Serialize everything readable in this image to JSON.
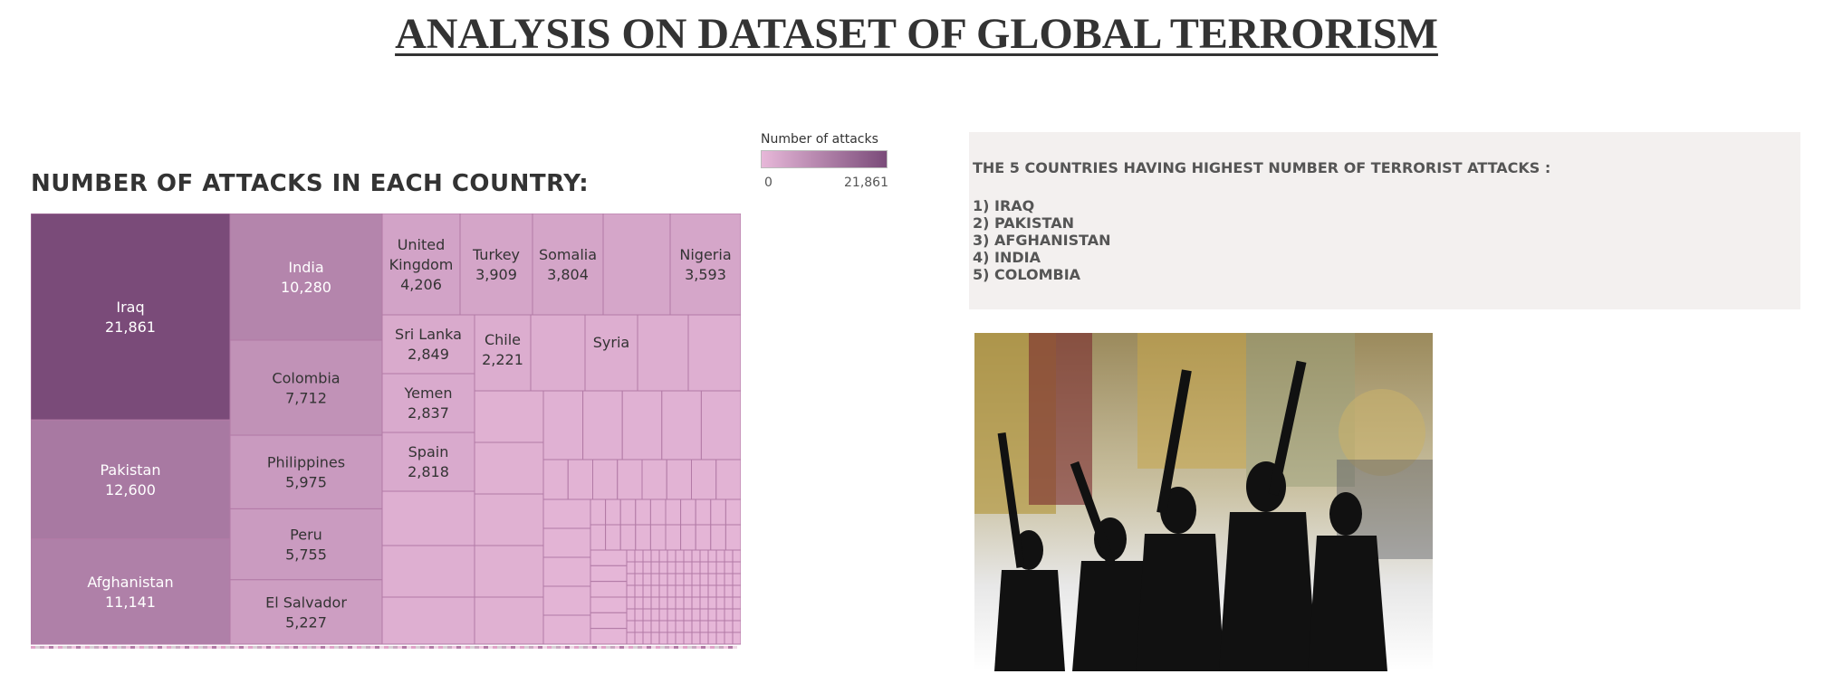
{
  "header": {
    "title": "ANALYSIS ON DATASET OF GLOBAL TERRORISM"
  },
  "legend": {
    "title": "Number of attacks",
    "min": "0",
    "max": "21,861",
    "color_low": "#e7b8d9",
    "color_high": "#7a4b79"
  },
  "chart_data": {
    "type": "treemap",
    "title": "NUMBER OF ATTACKS IN EACH COUNTRY:",
    "color_scale": {
      "min": 0,
      "max": 21861,
      "low": "#e7b8d9",
      "high": "#7a4b79"
    },
    "labeled": [
      {
        "name": "Iraq",
        "value": 21861,
        "display": "21,861"
      },
      {
        "name": "Pakistan",
        "value": 12600,
        "display": "12,600"
      },
      {
        "name": "Afghanistan",
        "value": 11141,
        "display": "11,141"
      },
      {
        "name": "India",
        "value": 10280,
        "display": "10,280"
      },
      {
        "name": "Colombia",
        "value": 7712,
        "display": "7,712"
      },
      {
        "name": "Philippines",
        "value": 5975,
        "display": "5,975"
      },
      {
        "name": "Peru",
        "value": 5755,
        "display": "5,755"
      },
      {
        "name": "El Salvador",
        "value": 5227,
        "display": "5,227"
      },
      {
        "name": "United Kingdom",
        "value": 4206,
        "display": "4,206"
      },
      {
        "name": "Turkey",
        "value": 3909,
        "display": "3,909"
      },
      {
        "name": "Somalia",
        "value": 3804,
        "display": "3,804"
      },
      {
        "name": "Nigeria",
        "value": 3593,
        "display": "3,593"
      },
      {
        "name": "Sri Lanka",
        "value": 2849,
        "display": "2,849"
      },
      {
        "name": "Yemen",
        "value": 2837,
        "display": "2,837"
      },
      {
        "name": "Spain",
        "value": 2818,
        "display": "2,818"
      },
      {
        "name": "Chile",
        "value": 2221,
        "display": "2,221"
      },
      {
        "name": "Syria",
        "value": 2000,
        "display": ""
      }
    ]
  },
  "top5": {
    "heading": "THE 5 COUNTRIES HAVING HIGHEST NUMBER OF TERRORIST ATTACKS :",
    "items": [
      "1) IRAQ",
      "2) PAKISTAN",
      "3) AFGHANISTAN",
      "4) INDIA",
      "5) COLOMBIA"
    ]
  }
}
